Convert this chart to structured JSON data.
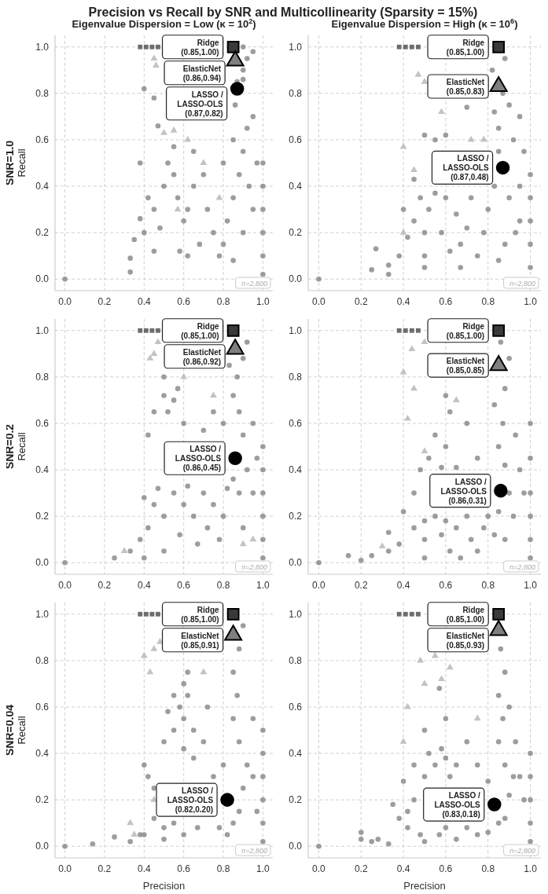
{
  "chart_data": [
    {
      "type": "scatter",
      "title": "Precision vs Recall by SNR and Multicollinearity (Sparsity = 15%)",
      "subtitle": "Eigenvalue Dispersion = Low (κ = 10$^{2}$)",
      "ylabel": "SNR=1.0\nRecall",
      "xlim": [
        -0.05,
        1.05
      ],
      "ylim": [
        -0.05,
        1.05
      ],
      "xticks": [
        {
          "value": 0,
          "label": "0.0"
        },
        {
          "value": 0.2,
          "label": "0.2"
        },
        {
          "value": 0.4,
          "label": "0.4"
        },
        {
          "value": 0.6,
          "label": "0.6"
        },
        {
          "value": 0.8,
          "label": "0.8"
        },
        {
          "value": 1,
          "label": "1.0"
        }
      ],
      "yticks": [
        {
          "value": 0,
          "label": "0.0"
        },
        {
          "value": 0.2,
          "label": "0.2"
        },
        {
          "value": 0.4,
          "label": "0.4"
        },
        {
          "value": 0.6,
          "label": "0.6"
        },
        {
          "value": 0.8,
          "label": "0.8"
        },
        {
          "value": 1,
          "label": "1.0"
        }
      ],
      "grid": true,
      "annotations": [
        {
          "text": "Ridge\n(0.85,1.00)",
          "x": 0.85,
          "y": 1.0
        },
        {
          "text": "ElasticNet\n(0.86,0.94)",
          "x": 0.86,
          "y": 0.94
        },
        {
          "text": "LASSO /\nLASSO-OLS\n(0.87,0.82)",
          "x": 0.87,
          "y": 0.82
        },
        "n=2,800"
      ],
      "series": [
        {
          "marker": "circle",
          "color": "#8c8c8c",
          "x": [
            0,
            0.33,
            0.33,
            0.35,
            0.4,
            0.38,
            0.42,
            0.45,
            0.48,
            0.5,
            0.52,
            0.55,
            0.57,
            0.6,
            0.62,
            0.65,
            0.55,
            0.47,
            0.45,
            0.4,
            0.65,
            0.7,
            0.72,
            0.75,
            0.78,
            0.8,
            0.82,
            0.85,
            0.88,
            0.9,
            0.92,
            0.85,
            0.86,
            0.87,
            0.9,
            0.92,
            0.95,
            0.9,
            0.9,
            0.95,
            0.93,
            0.9,
            0.85,
            0.95,
            0.97,
            1,
            1,
            1,
            1,
            1,
            1,
            0.68,
            0.62,
            0.58,
            0.45,
            0.8,
            0.38
          ],
          "values": [
            0,
            0.03,
            0.09,
            0.17,
            0.2,
            0.26,
            0.35,
            0.3,
            0.22,
            0.4,
            0.5,
            0.45,
            0.35,
            0.25,
            0.3,
            0.4,
            0.57,
            0.66,
            0.78,
            0.82,
            0.55,
            0.45,
            0.3,
            0.2,
            0.1,
            0.15,
            0.25,
            0.35,
            0.45,
            0.55,
            0.65,
            0.6,
            0.75,
            0.85,
            0.9,
            0.95,
            0.98,
            1.0,
            0.86,
            0.7,
            0.4,
            0.2,
            0.08,
            0.3,
            0.5,
            0.02,
            0.1,
            0.2,
            0.3,
            0.4,
            0.5,
            0.15,
            0.1,
            0.12,
            0.12,
            0.5,
            0.5
          ]
        },
        {
          "marker": "triangle",
          "color": "#b8b8b8",
          "x": [
            0.45,
            0.46,
            0.5,
            0.55,
            0.62,
            0.7,
            0.78,
            0.57
          ],
          "values": [
            0.95,
            0.92,
            0.63,
            0.64,
            0.6,
            0.5,
            0.35,
            0.3
          ]
        },
        {
          "marker": "square",
          "color": "#555555",
          "x": [
            0.38,
            0.41,
            0.44,
            0.47
          ],
          "values": [
            1,
            1,
            1,
            1
          ]
        },
        {
          "marker": "square",
          "color": "#3a3a3a",
          "x": [
            0.85
          ],
          "values": [
            1.0
          ]
        },
        {
          "marker": "triangle",
          "color": "#7f7f7f",
          "x": [
            0.86
          ],
          "values": [
            0.94
          ]
        },
        {
          "marker": "circle",
          "color": "#000000",
          "x": [
            0.87
          ],
          "values": [
            0.82
          ]
        }
      ]
    },
    {
      "type": "scatter",
      "subtitle": "Eigenvalue Dispersion = High (κ = 10$^{6}$)",
      "xlim": [
        -0.05,
        1.05
      ],
      "ylim": [
        -0.05,
        1.05
      ],
      "xticks": [
        {
          "value": 0,
          "label": "0.0"
        },
        {
          "value": 0.2,
          "label": "0.2"
        },
        {
          "value": 0.4,
          "label": "0.4"
        },
        {
          "value": 0.6,
          "label": "0.6"
        },
        {
          "value": 0.8,
          "label": "0.8"
        },
        {
          "value": 1,
          "label": "1.0"
        }
      ],
      "yticks": [
        {
          "value": 0,
          "label": "0.0"
        },
        {
          "value": 0.2,
          "label": "0.2"
        },
        {
          "value": 0.4,
          "label": "0.4"
        },
        {
          "value": 0.6,
          "label": "0.6"
        },
        {
          "value": 0.8,
          "label": "0.8"
        },
        {
          "value": 1,
          "label": "1.0"
        }
      ],
      "grid": true,
      "annotations": [
        {
          "text": "Ridge\n(0.85,1.00)",
          "x": 0.85,
          "y": 1.0
        },
        {
          "text": "ElasticNet\n(0.85,0.83)",
          "x": 0.85,
          "y": 0.83
        },
        {
          "text": "LASSO /\nLASSO-OLS\n(0.87,0.48)",
          "x": 0.87,
          "y": 0.48
        },
        "n=2,800"
      ],
      "series": [
        {
          "marker": "circle",
          "color": "#8c8c8c",
          "x": [
            0,
            0.27,
            0.25,
            0.33,
            0.33,
            0.38,
            0.4,
            0.42,
            0.45,
            0.48,
            0.5,
            0.5,
            0.5,
            0.52,
            0.55,
            0.45,
            0.55,
            0.5,
            0.58,
            0.6,
            0.62,
            0.65,
            0.67,
            0.67,
            0.7,
            0.72,
            0.75,
            0.78,
            0.8,
            0.83,
            0.85,
            0.85,
            0.83,
            0.87,
            0.82,
            0.88,
            0.9,
            0.92,
            0.9,
            0.88,
            0.85,
            0.93,
            0.95,
            0.95,
            0.97,
            0.95,
            1,
            1,
            1,
            1,
            1,
            0.6,
            0.7
          ],
          "values": [
            0,
            0.13,
            0.04,
            0.02,
            0.06,
            0.1,
            0.3,
            0.18,
            0.25,
            0.35,
            0.1,
            0.2,
            0.05,
            0.3,
            0.37,
            0.43,
            0.6,
            0.62,
            0.2,
            0.35,
            0.12,
            0.28,
            0.05,
            0.15,
            0.22,
            0.35,
            0.1,
            0.2,
            0.3,
            0.4,
            0.55,
            0.65,
            0.72,
            0.8,
            0.9,
            0.95,
            0.75,
            0.6,
            0.35,
            0.15,
            0.08,
            0.2,
            0.4,
            0.7,
            0.55,
            0.25,
            0.05,
            0.15,
            0.25,
            0.35,
            0.45,
            0.62,
            0.74
          ]
        },
        {
          "marker": "triangle",
          "color": "#b8b8b8",
          "x": [
            0.47,
            0.5,
            0.4,
            0.45,
            0.58,
            0.4,
            0.72,
            0.78
          ],
          "values": [
            0.88,
            0.85,
            0.57,
            0.47,
            0.72,
            0.2,
            0.6,
            0.6
          ]
        },
        {
          "marker": "square",
          "color": "#555555",
          "x": [
            0.38,
            0.41,
            0.44,
            0.47
          ],
          "values": [
            1,
            1,
            1,
            1
          ]
        },
        {
          "marker": "square",
          "color": "#3a3a3a",
          "x": [
            0.85
          ],
          "values": [
            1.0
          ]
        },
        {
          "marker": "triangle",
          "color": "#7f7f7f",
          "x": [
            0.85
          ],
          "values": [
            0.83
          ]
        },
        {
          "marker": "circle",
          "color": "#000000",
          "x": [
            0.87
          ],
          "values": [
            0.48
          ]
        }
      ]
    },
    {
      "type": "scatter",
      "ylabel": "SNR=0.2\nRecall",
      "xlim": [
        -0.05,
        1.05
      ],
      "ylim": [
        -0.05,
        1.05
      ],
      "xticks": [
        {
          "value": 0,
          "label": "0.0"
        },
        {
          "value": 0.2,
          "label": "0.2"
        },
        {
          "value": 0.4,
          "label": "0.4"
        },
        {
          "value": 0.6,
          "label": "0.6"
        },
        {
          "value": 0.8,
          "label": "0.8"
        },
        {
          "value": 1,
          "label": "1.0"
        }
      ],
      "yticks": [
        {
          "value": 0,
          "label": "0.0"
        },
        {
          "value": 0.2,
          "label": "0.2"
        },
        {
          "value": 0.4,
          "label": "0.4"
        },
        {
          "value": 0.6,
          "label": "0.6"
        },
        {
          "value": 0.8,
          "label": "0.8"
        },
        {
          "value": 1,
          "label": "1.0"
        }
      ],
      "grid": true,
      "annotations": [
        {
          "text": "Ridge\n(0.85,1.00)",
          "x": 0.85,
          "y": 1.0
        },
        {
          "text": "ElasticNet\n(0.86,0.92)",
          "x": 0.86,
          "y": 0.92
        },
        {
          "text": "LASSO /\nLASSO-OLS\n(0.86,0.45)",
          "x": 0.86,
          "y": 0.45
        },
        "n=2,800"
      ],
      "series": [
        {
          "marker": "circle",
          "color": "#8c8c8c",
          "x": [
            0,
            0.25,
            0.33,
            0.38,
            0.4,
            0.42,
            0.45,
            0.4,
            0.47,
            0.5,
            0.5,
            0.55,
            0.58,
            0.6,
            0.62,
            0.65,
            0.67,
            0.7,
            0.72,
            0.75,
            0.78,
            0.8,
            0.82,
            0.85,
            0.88,
            0.9,
            0.92,
            0.9,
            0.88,
            0.85,
            0.87,
            0.9,
            0.92,
            0.95,
            0.95,
            0.97,
            1,
            1,
            1,
            1,
            1,
            1,
            0.45,
            0.5,
            0.55,
            0.57,
            0.52,
            0.6,
            0.42,
            0.5,
            0.8,
            0.83,
            0.7,
            0.75
          ],
          "values": [
            0,
            0.02,
            0.05,
            0.1,
            0.02,
            0.15,
            0.25,
            0.28,
            0.32,
            0.2,
            0.05,
            0.3,
            0.12,
            0.25,
            0.33,
            0.2,
            0.08,
            0.3,
            0.15,
            0.25,
            0.1,
            0.2,
            0.32,
            0.36,
            0.3,
            0.15,
            0.4,
            0.55,
            0.65,
            0.72,
            0.8,
            0.88,
            0.95,
            0.6,
            0.3,
            0.45,
            0.02,
            0.1,
            0.2,
            0.3,
            0.4,
            0.5,
            0.65,
            0.72,
            0.7,
            0.75,
            0.65,
            0.6,
            0.55,
            0.8,
            0.6,
            0.85,
            0.57,
            0.65
          ]
        },
        {
          "marker": "triangle",
          "color": "#b8b8b8",
          "x": [
            0.47,
            0.43,
            0.45,
            0.3,
            0.75,
            0.95,
            0.9,
            0.6
          ],
          "values": [
            0.95,
            0.88,
            0.9,
            0.05,
            0.72,
            0.1,
            0.08,
            0.8
          ]
        },
        {
          "marker": "square",
          "color": "#555555",
          "x": [
            0.38,
            0.41,
            0.44,
            0.47
          ],
          "values": [
            1,
            1,
            1,
            1
          ]
        },
        {
          "marker": "square",
          "color": "#3a3a3a",
          "x": [
            0.85
          ],
          "values": [
            1.0
          ]
        },
        {
          "marker": "triangle",
          "color": "#7f7f7f",
          "x": [
            0.86
          ],
          "values": [
            0.92
          ]
        },
        {
          "marker": "circle",
          "color": "#000000",
          "x": [
            0.86
          ],
          "values": [
            0.45
          ]
        }
      ]
    },
    {
      "type": "scatter",
      "xlim": [
        -0.05,
        1.05
      ],
      "ylim": [
        -0.05,
        1.05
      ],
      "xticks": [
        {
          "value": 0,
          "label": "0.0"
        },
        {
          "value": 0.2,
          "label": "0.2"
        },
        {
          "value": 0.4,
          "label": "0.4"
        },
        {
          "value": 0.6,
          "label": "0.6"
        },
        {
          "value": 0.8,
          "label": "0.8"
        },
        {
          "value": 1,
          "label": "1.0"
        }
      ],
      "yticks": [
        {
          "value": 0,
          "label": "0.0"
        },
        {
          "value": 0.2,
          "label": "0.2"
        },
        {
          "value": 0.4,
          "label": "0.4"
        },
        {
          "value": 0.6,
          "label": "0.6"
        },
        {
          "value": 0.8,
          "label": "0.8"
        },
        {
          "value": 1,
          "label": "1.0"
        }
      ],
      "grid": true,
      "annotations": [
        {
          "text": "Ridge\n(0.85,1.00)",
          "x": 0.85,
          "y": 1.0
        },
        {
          "text": "ElasticNet\n(0.85,0.85)",
          "x": 0.85,
          "y": 0.85
        },
        {
          "text": "LASSO /\nLASSO-OLS\n(0.86,0.31)",
          "x": 0.86,
          "y": 0.31
        },
        "n=2,800"
      ],
      "series": [
        {
          "marker": "circle",
          "color": "#8c8c8c",
          "x": [
            0,
            0.14,
            0.2,
            0.25,
            0.33,
            0.33,
            0.38,
            0.4,
            0.45,
            0.45,
            0.5,
            0.5,
            0.5,
            0.48,
            0.52,
            0.55,
            0.58,
            0.6,
            0.62,
            0.65,
            0.67,
            0.7,
            0.72,
            0.75,
            0.78,
            0.8,
            0.83,
            0.85,
            0.88,
            0.9,
            0.92,
            0.88,
            0.85,
            0.87,
            0.83,
            0.88,
            0.9,
            0.86,
            0.93,
            0.95,
            0.97,
            1,
            1,
            1,
            1,
            1,
            1,
            0.6,
            0.62,
            0.6,
            0.55,
            0.65,
            0.7,
            0.75,
            0.58
          ],
          "values": [
            0,
            0.03,
            0.01,
            0.03,
            0.05,
            0.13,
            0.08,
            0.22,
            0.15,
            0.3,
            0.02,
            0.1,
            0.18,
            0.4,
            0.45,
            0.2,
            0.12,
            0.18,
            0.05,
            0.15,
            0.02,
            0.2,
            0.1,
            0.05,
            0.15,
            0.2,
            0.12,
            0.22,
            0.1,
            0.3,
            0.2,
            0.42,
            0.5,
            0.6,
            0.68,
            0.75,
            0.88,
            0.95,
            0.55,
            0.4,
            0.3,
            0.02,
            0.1,
            0.2,
            0.3,
            0.45,
            0.6,
            0.5,
            0.65,
            0.72,
            0.55,
            0.41,
            0.6,
            0.45,
            0.41
          ]
        },
        {
          "marker": "triangle",
          "color": "#b8b8b8",
          "x": [
            0.4,
            0.45,
            0.5,
            0.44,
            0.42,
            0.5,
            0.3,
            0.65
          ],
          "values": [
            0.82,
            0.75,
            0.95,
            0.92,
            0.62,
            0.48,
            0.07,
            0.7
          ]
        },
        {
          "marker": "square",
          "color": "#555555",
          "x": [
            0.38,
            0.41,
            0.44,
            0.47
          ],
          "values": [
            1,
            1,
            1,
            1
          ]
        },
        {
          "marker": "square",
          "color": "#3a3a3a",
          "x": [
            0.85
          ],
          "values": [
            1.0
          ]
        },
        {
          "marker": "triangle",
          "color": "#7f7f7f",
          "x": [
            0.85
          ],
          "values": [
            0.85
          ]
        },
        {
          "marker": "circle",
          "color": "#000000",
          "x": [
            0.86
          ],
          "values": [
            0.31
          ]
        }
      ]
    },
    {
      "type": "scatter",
      "ylabel": "SNR=0.04\nRecall",
      "xlabel": "Precision",
      "xlim": [
        -0.05,
        1.05
      ],
      "ylim": [
        -0.05,
        1.05
      ],
      "xticks": [
        {
          "value": 0,
          "label": "0.0"
        },
        {
          "value": 0.2,
          "label": "0.2"
        },
        {
          "value": 0.4,
          "label": "0.4"
        },
        {
          "value": 0.6,
          "label": "0.6"
        },
        {
          "value": 0.8,
          "label": "0.8"
        },
        {
          "value": 1,
          "label": "1.0"
        }
      ],
      "yticks": [
        {
          "value": 0,
          "label": "0.0"
        },
        {
          "value": 0.2,
          "label": "0.2"
        },
        {
          "value": 0.4,
          "label": "0.4"
        },
        {
          "value": 0.6,
          "label": "0.6"
        },
        {
          "value": 0.8,
          "label": "0.8"
        },
        {
          "value": 1,
          "label": "1.0"
        }
      ],
      "grid": true,
      "annotations": [
        {
          "text": "Ridge\n(0.85,1.00)",
          "x": 0.85,
          "y": 1.0
        },
        {
          "text": "ElasticNet\n(0.85,0.91)",
          "x": 0.85,
          "y": 0.91
        },
        {
          "text": "LASSO /\nLASSO-OLS\n(0.82,0.20)",
          "x": 0.82,
          "y": 0.2
        },
        "n=2,800"
      ],
      "series": [
        {
          "marker": "circle",
          "color": "#8c8c8c",
          "x": [
            0,
            0.14,
            0.25,
            0.33,
            0.38,
            0.4,
            0.42,
            0.45,
            0.5,
            0.5,
            0.5,
            0.55,
            0.58,
            0.6,
            0.62,
            0.65,
            0.6,
            0.55,
            0.52,
            0.6,
            0.65,
            0.7,
            0.72,
            0.62,
            0.67,
            0.6,
            0.55,
            0.78,
            0.82,
            0.85,
            0.88,
            0.9,
            0.92,
            0.88,
            0.85,
            0.87,
            0.85,
            0.88,
            0.9,
            0.95,
            0.95,
            0.97,
            1,
            1,
            1,
            1,
            1,
            1,
            0.8,
            0.75,
            0.45,
            0.4
          ],
          "values": [
            0,
            0.01,
            0.04,
            0.02,
            0.05,
            0.35,
            0.3,
            0.25,
            0.03,
            0.08,
            0.45,
            0.5,
            0.6,
            0.55,
            0.65,
            0.5,
            0.7,
            0.65,
            0.58,
            0.42,
            0.38,
            0.45,
            0.6,
            0.75,
            0.08,
            0.05,
            0.1,
            0.08,
            0.05,
            0.1,
            0.15,
            0.25,
            0.35,
            0.45,
            0.55,
            0.65,
            0.75,
            0.85,
            0.95,
            0.55,
            0.3,
            0.15,
            0.02,
            0.1,
            0.2,
            0.3,
            0.4,
            0.5,
            0.35,
            0.3,
            0.12,
            0.05
          ]
        },
        {
          "marker": "triangle",
          "color": "#b8b8b8",
          "x": [
            0.4,
            0.45,
            0.48,
            0.43,
            0.33,
            0.35,
            0.45,
            0.7
          ],
          "values": [
            0.82,
            0.85,
            0.88,
            0.75,
            0.1,
            0.05,
            0.2,
            0.75
          ]
        },
        {
          "marker": "square",
          "color": "#555555",
          "x": [
            0.38,
            0.41,
            0.44,
            0.47
          ],
          "values": [
            1,
            1,
            1,
            1
          ]
        },
        {
          "marker": "square",
          "color": "#3a3a3a",
          "x": [
            0.85
          ],
          "values": [
            1.0
          ]
        },
        {
          "marker": "triangle",
          "color": "#7f7f7f",
          "x": [
            0.85
          ],
          "values": [
            0.91
          ]
        },
        {
          "marker": "circle",
          "color": "#000000",
          "x": [
            0.82
          ],
          "values": [
            0.2
          ]
        }
      ]
    },
    {
      "type": "scatter",
      "xlabel": "Precision",
      "xlim": [
        -0.05,
        1.05
      ],
      "ylim": [
        -0.05,
        1.05
      ],
      "xticks": [
        {
          "value": 0,
          "label": "0.0"
        },
        {
          "value": 0.2,
          "label": "0.2"
        },
        {
          "value": 0.4,
          "label": "0.4"
        },
        {
          "value": 0.6,
          "label": "0.6"
        },
        {
          "value": 0.8,
          "label": "0.8"
        },
        {
          "value": 1,
          "label": "1.0"
        }
      ],
      "yticks": [
        {
          "value": 0,
          "label": "0.0"
        },
        {
          "value": 0.2,
          "label": "0.2"
        },
        {
          "value": 0.4,
          "label": "0.4"
        },
        {
          "value": 0.6,
          "label": "0.6"
        },
        {
          "value": 0.8,
          "label": "0.8"
        },
        {
          "value": 1,
          "label": "1.0"
        }
      ],
      "grid": true,
      "annotations": [
        {
          "text": "Ridge\n(0.85,1.00)",
          "x": 0.85,
          "y": 1.0
        },
        {
          "text": "ElasticNet\n(0.85,0.93)",
          "x": 0.85,
          "y": 0.93
        },
        {
          "text": "LASSO /\nLASSO-OLS\n(0.83,0.18)",
          "x": 0.83,
          "y": 0.18
        },
        "n=2,800"
      ],
      "series": [
        {
          "marker": "circle",
          "color": "#8c8c8c",
          "x": [
            0,
            0.2,
            0.2,
            0.25,
            0.28,
            0.33,
            0.35,
            0.38,
            0.4,
            0.42,
            0.45,
            0.45,
            0.48,
            0.5,
            0.5,
            0.52,
            0.55,
            0.58,
            0.6,
            0.62,
            0.65,
            0.57,
            0.6,
            0.65,
            0.7,
            0.75,
            0.8,
            0.85,
            0.88,
            0.9,
            0.92,
            0.88,
            0.85,
            0.87,
            0.85,
            0.88,
            0.86,
            0.9,
            0.93,
            0.95,
            0.97,
            1,
            1,
            1,
            1,
            1,
            0.5,
            0.6,
            0.57,
            0.7,
            0.75,
            0.8,
            0.42
          ],
          "values": [
            0,
            0.03,
            0.06,
            0.02,
            0.03,
            0.01,
            0.18,
            0.12,
            0.28,
            0.08,
            0.2,
            0.35,
            0.05,
            0.02,
            0.3,
            0.4,
            0.35,
            0.42,
            0.38,
            0.3,
            0.35,
            0.05,
            0.08,
            0.03,
            0.08,
            0.05,
            0.06,
            0.1,
            0.12,
            0.22,
            0.3,
            0.35,
            0.45,
            0.55,
            0.65,
            0.75,
            0.85,
            0.6,
            0.45,
            0.3,
            0.2,
            0.02,
            0.1,
            0.2,
            0.3,
            0.4,
            0.5,
            0.55,
            0.68,
            0.45,
            0.35,
            0.28,
            0.15
          ]
        },
        {
          "marker": "triangle",
          "color": "#b8b8b8",
          "x": [
            0.48,
            0.5,
            0.55,
            0.42,
            0.4,
            0.62,
            0.75,
            0.58
          ],
          "values": [
            0.8,
            0.7,
            0.82,
            0.6,
            0.45,
            0.77,
            0.55,
            0.72
          ]
        },
        {
          "marker": "square",
          "color": "#555555",
          "x": [
            0.38,
            0.41,
            0.44,
            0.47
          ],
          "values": [
            1,
            1,
            1,
            1
          ]
        },
        {
          "marker": "square",
          "color": "#3a3a3a",
          "x": [
            0.85
          ],
          "values": [
            1.0
          ]
        },
        {
          "marker": "triangle",
          "color": "#7f7f7f",
          "x": [
            0.85
          ],
          "values": [
            0.93
          ]
        },
        {
          "marker": "circle",
          "color": "#000000",
          "x": [
            0.83
          ],
          "values": [
            0.18
          ]
        }
      ]
    }
  ]
}
